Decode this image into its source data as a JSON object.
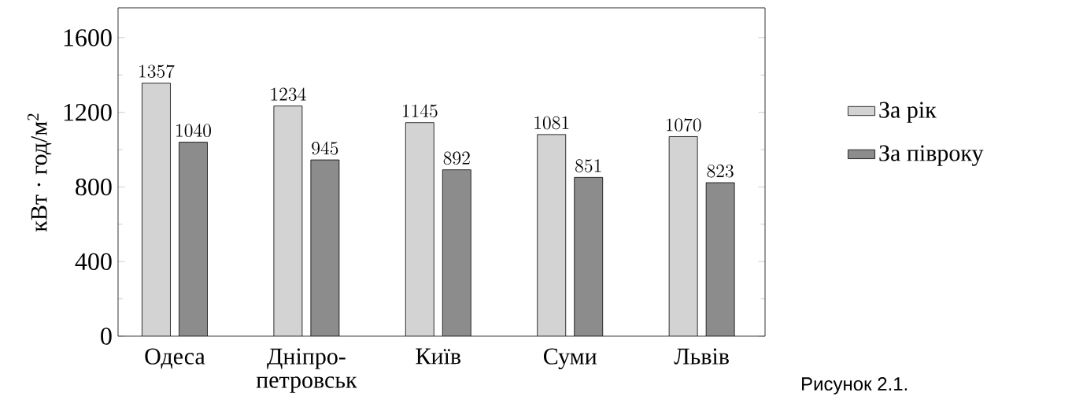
{
  "chart_data": {
    "type": "bar",
    "ylabel": "кВт · год/м$^{2}$",
    "categories": [
      "Одеса",
      "Дніпро-петровськ",
      "Київ",
      "Суми",
      "Львів"
    ],
    "series": [
      {
        "name": "За рік",
        "color": "#d3d3d3",
        "values": [
          1357,
          1234,
          1145,
          1081,
          1070
        ]
      },
      {
        "name": "За півроку",
        "color": "#8c8c8c",
        "values": [
          1040,
          945,
          892,
          851,
          823
        ]
      }
    ],
    "ylim": [
      0,
      1760
    ],
    "yticks": [
      0,
      400,
      800,
      1200,
      1600
    ],
    "data_labels": true,
    "legend": "right",
    "grid": false,
    "annotations": [
      "Рисунок 2.1."
    ]
  }
}
